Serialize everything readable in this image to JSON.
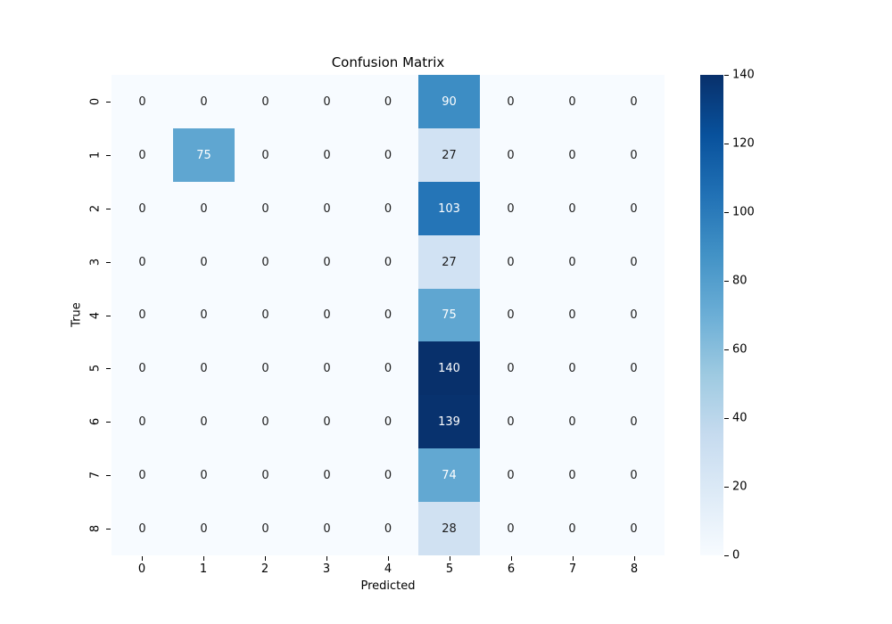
{
  "figure": {
    "background_color": "#ffffff"
  },
  "chart_data": {
    "type": "heatmap",
    "title": "Confusion Matrix",
    "xlabel": "Predicted",
    "ylabel": "True",
    "x_tick_labels": [
      "0",
      "1",
      "2",
      "3",
      "4",
      "5",
      "6",
      "7",
      "8"
    ],
    "y_tick_labels": [
      "0",
      "1",
      "2",
      "3",
      "4",
      "5",
      "6",
      "7",
      "8"
    ],
    "matrix": [
      [
        0,
        0,
        0,
        0,
        0,
        90,
        0,
        0,
        0
      ],
      [
        0,
        75,
        0,
        0,
        0,
        27,
        0,
        0,
        0
      ],
      [
        0,
        0,
        0,
        0,
        0,
        103,
        0,
        0,
        0
      ],
      [
        0,
        0,
        0,
        0,
        0,
        27,
        0,
        0,
        0
      ],
      [
        0,
        0,
        0,
        0,
        0,
        75,
        0,
        0,
        0
      ],
      [
        0,
        0,
        0,
        0,
        0,
        140,
        0,
        0,
        0
      ],
      [
        0,
        0,
        0,
        0,
        0,
        139,
        0,
        0,
        0
      ],
      [
        0,
        0,
        0,
        0,
        0,
        74,
        0,
        0,
        0
      ],
      [
        0,
        0,
        0,
        0,
        0,
        28,
        0,
        0,
        0
      ]
    ],
    "vmin": 0,
    "vmax": 140,
    "colormap": "Blues",
    "colormap_stops": [
      "#f7fbff",
      "#deebf7",
      "#c6dbef",
      "#9ecae1",
      "#6baed6",
      "#4292c6",
      "#2171b5",
      "#08519c",
      "#08306b"
    ],
    "colorbar_ticks": [
      140,
      120,
      100,
      80,
      60,
      40,
      20,
      0
    ],
    "legend_position": "right-colorbar",
    "grid": false,
    "annotation_dark_text_color": "#1c1c1c",
    "annotation_light_text_color": "#ffffff"
  }
}
